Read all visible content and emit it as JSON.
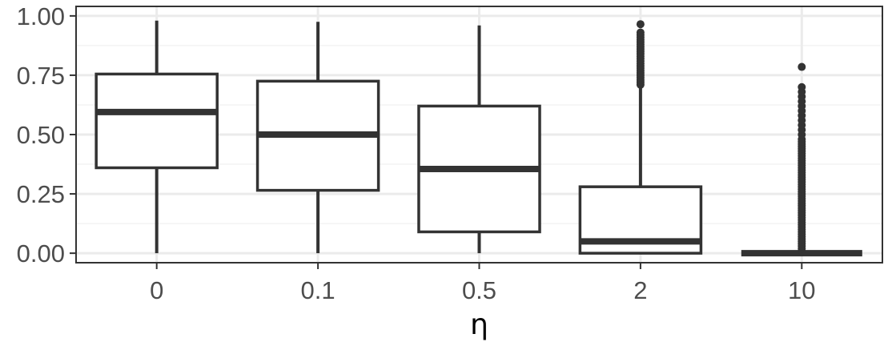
{
  "chart_data": {
    "type": "boxplot",
    "xlabel": "η",
    "ylabel": "",
    "ylim": [
      -0.04,
      1.04
    ],
    "yticks": [
      "0.00",
      "0.25",
      "0.50",
      "0.75",
      "1.00"
    ],
    "grid": true,
    "legend": "none",
    "categories": [
      "0",
      "0.1",
      "0.5",
      "2",
      "10"
    ],
    "boxes": [
      {
        "category": "0",
        "whisker_low": 0.0,
        "q1": 0.36,
        "median": 0.595,
        "q3": 0.755,
        "whisker_high": 0.98,
        "outliers": []
      },
      {
        "category": "0.1",
        "whisker_low": 0.0,
        "q1": 0.265,
        "median": 0.5,
        "q3": 0.725,
        "whisker_high": 0.975,
        "outliers": []
      },
      {
        "category": "0.5",
        "whisker_low": 0.0,
        "q1": 0.09,
        "median": 0.355,
        "q3": 0.62,
        "whisker_high": 0.96,
        "outliers": []
      },
      {
        "category": "2",
        "whisker_low": 0.0,
        "q1": 0.0,
        "median": 0.05,
        "q3": 0.28,
        "whisker_high": 0.7,
        "outliers": [
          0.71,
          0.72,
          0.73,
          0.74,
          0.75,
          0.76,
          0.77,
          0.78,
          0.79,
          0.8,
          0.81,
          0.82,
          0.83,
          0.84,
          0.85,
          0.86,
          0.87,
          0.88,
          0.89,
          0.9,
          0.91,
          0.92,
          0.93,
          0.965
        ]
      },
      {
        "category": "10",
        "whisker_low": 0.0,
        "q1": 0.0,
        "median": 0.0,
        "q3": 0.0,
        "whisker_high": 0.0,
        "outliers": [
          0.01,
          0.02,
          0.03,
          0.04,
          0.05,
          0.06,
          0.07,
          0.08,
          0.09,
          0.1,
          0.11,
          0.12,
          0.13,
          0.14,
          0.15,
          0.16,
          0.17,
          0.18,
          0.19,
          0.2,
          0.21,
          0.22,
          0.23,
          0.24,
          0.25,
          0.26,
          0.27,
          0.28,
          0.29,
          0.3,
          0.31,
          0.32,
          0.33,
          0.34,
          0.35,
          0.36,
          0.37,
          0.38,
          0.39,
          0.4,
          0.41,
          0.42,
          0.43,
          0.44,
          0.45,
          0.46,
          0.47,
          0.48,
          0.5,
          0.52,
          0.54,
          0.56,
          0.58,
          0.6,
          0.62,
          0.64,
          0.66,
          0.68,
          0.7,
          0.785
        ]
      }
    ],
    "colors": {
      "box_stroke": "#333333",
      "box_fill": "#ffffff",
      "grid_major": "#ebebeb",
      "grid_minor": "#f3f3f3",
      "panel_border": "#333333",
      "tick_label": "#4d4d4d"
    }
  }
}
